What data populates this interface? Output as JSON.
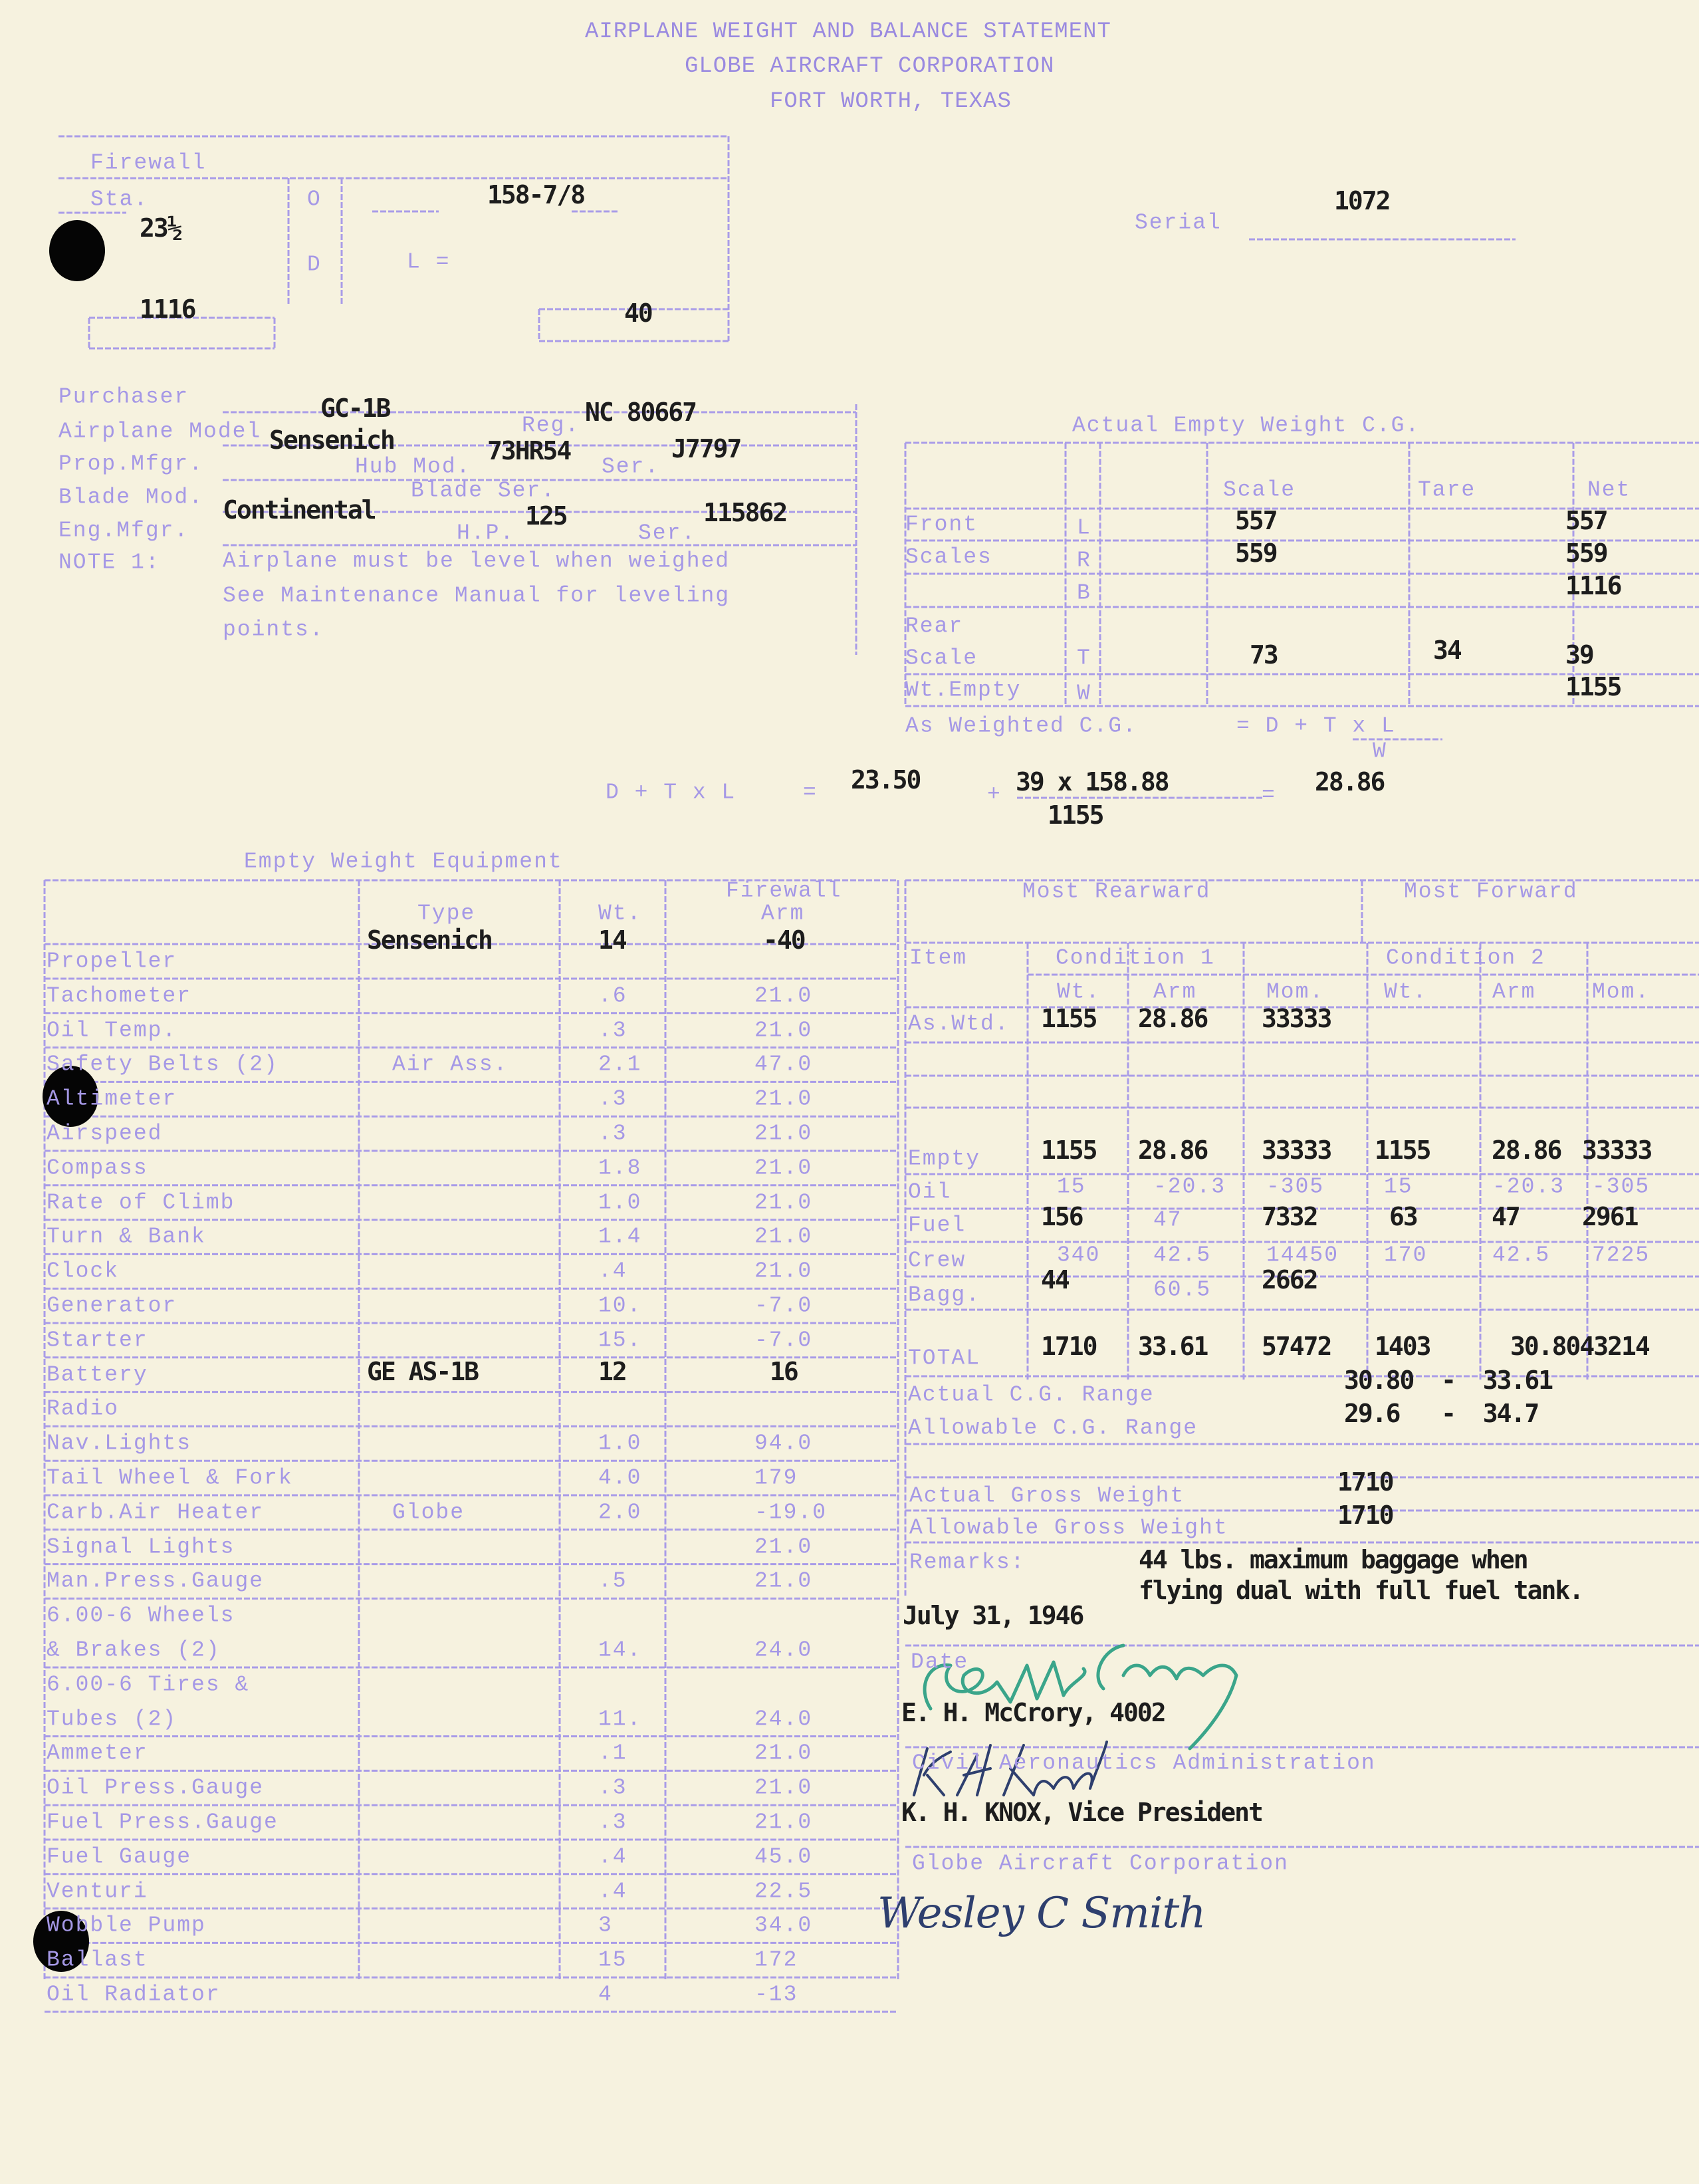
{
  "header": {
    "title": "AIRPLANE WEIGHT AND BALANCE STATEMENT",
    "company": "GLOBE AIRCRAFT CORPORATION",
    "location": "FORT WORTH, TEXAS"
  },
  "firewall_box": {
    "label": "Firewall",
    "sta_label": "Sta.",
    "sta_value": "23½",
    "o_label": "O",
    "d_label": "D",
    "l_label": "L =",
    "length_value": "158-7/8",
    "weight_value": "1116",
    "d_value": "40"
  },
  "serial": {
    "label": "Serial",
    "value": "1072"
  },
  "airplane_info": {
    "labels": [
      "Purchaser",
      "Airplane Model",
      "Prop.Mfgr.",
      "Blade Mod.",
      "Eng.Mfgr.",
      "NOTE 1:"
    ],
    "reg_label": "Reg.",
    "hub_mod_label": "Hub Mod.",
    "prop_ser_label": "Ser.",
    "blade_ser_label": "Blade Ser.",
    "hp_label": "H.P.",
    "eng_ser_label": "Ser.",
    "model": "GC-1B",
    "reg": "NC 80667",
    "prop_mfgr": "Sensenich",
    "hub_mod": "73HR54",
    "prop_ser": "J7797",
    "eng_mfgr": "Continental",
    "hp": "125",
    "eng_ser": "115862",
    "note_lines": [
      "Airplane must be level when weighed",
      "See Maintenance Manual for leveling",
      "points."
    ]
  },
  "empty_cg": {
    "title": "Actual Empty Weight C.G.",
    "headers": {
      "scale": "Scale",
      "tare": "Tare",
      "net": "Net"
    },
    "rows": [
      {
        "label": "Front",
        "code": "L",
        "scale": "557",
        "tare": "",
        "net": "557"
      },
      {
        "label": "Scales",
        "code": "R",
        "scale": "559",
        "tare": "",
        "net": "559"
      },
      {
        "label": "",
        "code": "B",
        "scale": "",
        "tare": "",
        "net": "1116"
      },
      {
        "label": "Rear",
        "code": "",
        "scale": "",
        "tare": "",
        "net": ""
      },
      {
        "label": "Scale",
        "code": "T",
        "scale": "73",
        "tare": "34",
        "net": "39"
      },
      {
        "label": "Wt.Empty",
        "code": "W",
        "scale": "",
        "tare": "",
        "net": "1155"
      }
    ],
    "as_weighted_label": "As Weighted C.G.",
    "formula_text": "= D + T x L",
    "formula_denominator": "W",
    "calc": {
      "lhs": "D + T x L",
      "eq1": "=",
      "d": "23.50",
      "plus": "+",
      "numerator": "39 x 158.88",
      "denominator": "1155",
      "eq2": "=",
      "result": "28.86"
    }
  },
  "equipment": {
    "title": "Empty Weight Equipment",
    "headers": {
      "type": "Type",
      "wt": "Wt.",
      "arm_line1": "Firewall",
      "arm_line2": "Arm"
    },
    "items": [
      {
        "item": "Propeller",
        "type": "Sensenich",
        "wt": "14",
        "arm": "-40",
        "typed": true
      },
      {
        "item": "Tachometer",
        "type": "",
        "wt": ".6",
        "arm": "21.0"
      },
      {
        "item": "Oil Temp.",
        "type": "",
        "wt": ".3",
        "arm": "21.0"
      },
      {
        "item": "Safety Belts (2)",
        "type": "Air Ass.",
        "wt": "2.1",
        "arm": "47.0"
      },
      {
        "item": "Altimeter",
        "type": "",
        "wt": ".3",
        "arm": "21.0"
      },
      {
        "item": "Airspeed",
        "type": "",
        "wt": ".3",
        "arm": "21.0"
      },
      {
        "item": "Compass",
        "type": "",
        "wt": "1.8",
        "arm": "21.0"
      },
      {
        "item": "Rate of Climb",
        "type": "",
        "wt": "1.0",
        "arm": "21.0"
      },
      {
        "item": "Turn & Bank",
        "type": "",
        "wt": "1.4",
        "arm": "21.0"
      },
      {
        "item": "Clock",
        "type": "",
        "wt": ".4",
        "arm": "21.0"
      },
      {
        "item": "Generator",
        "type": "",
        "wt": "10.",
        "arm": "-7.0"
      },
      {
        "item": "Starter",
        "type": "",
        "wt": "15.",
        "arm": "-7.0"
      },
      {
        "item": "Battery",
        "type": "GE AS-1B",
        "wt": "12",
        "arm": "16",
        "typed": true
      },
      {
        "item": "Radio",
        "type": "",
        "wt": "",
        "arm": ""
      },
      {
        "item": "Nav.Lights",
        "type": "",
        "wt": "1.0",
        "arm": "94.0"
      },
      {
        "item": "Tail Wheel & Fork",
        "type": "",
        "wt": "4.0",
        "arm": "179"
      },
      {
        "item": "Carb.Air Heater",
        "type": "Globe",
        "wt": "2.0",
        "arm": "-19.0"
      },
      {
        "item": "Signal Lights",
        "type": "",
        "wt": "",
        "arm": "21.0"
      },
      {
        "item": "Man.Press.Gauge",
        "type": "",
        "wt": ".5",
        "arm": "21.0"
      },
      {
        "item": "6.00-6 Wheels",
        "item_line2": "& Brakes (2)",
        "type": "",
        "wt": "14.",
        "arm": "24.0"
      },
      {
        "item": "6.00-6 Tires &",
        "item_line2": "Tubes (2)",
        "type": "",
        "wt": "11.",
        "arm": "24.0"
      },
      {
        "item": "Ammeter",
        "type": "",
        "wt": ".1",
        "arm": "21.0"
      },
      {
        "item": "Oil Press.Gauge",
        "type": "",
        "wt": ".3",
        "arm": "21.0"
      },
      {
        "item": "Fuel Press.Gauge",
        "type": "",
        "wt": ".3",
        "arm": "21.0"
      },
      {
        "item": "Fuel Gauge",
        "type": "",
        "wt": ".4",
        "arm": "45.0"
      },
      {
        "item": "Venturi",
        "type": "",
        "wt": ".4",
        "arm": "22.5"
      },
      {
        "item": "Wobble Pump",
        "type": "",
        "wt": "3",
        "arm": "34.0"
      },
      {
        "item": "Ballast",
        "type": "",
        "wt": "15",
        "arm": "172"
      },
      {
        "item": "Oil Radiator",
        "type": "",
        "wt": "4",
        "arm": "-13"
      }
    ]
  },
  "loading": {
    "most_rearward": "Most Rearward",
    "most_forward": "Most Forward",
    "item_label": "Item",
    "condition1": "Condition 1",
    "condition2": "Condition 2",
    "col_headers": [
      "Wt.",
      "Arm",
      "Mom.",
      "Wt.",
      "Arm",
      "Mom."
    ],
    "rows": [
      {
        "label": "As.Wtd.",
        "c1": [
          "1155",
          "28.86",
          "33333"
        ],
        "c2": [
          "",
          "",
          ""
        ],
        "typed": [
          true,
          true,
          true,
          false,
          false,
          false
        ]
      },
      {
        "label": "Empty",
        "c1": [
          "1155",
          "28.86",
          "33333"
        ],
        "c2": [
          "1155",
          "28.86",
          "33333"
        ],
        "typed": [
          true,
          true,
          true,
          true,
          true,
          true
        ]
      },
      {
        "label": "Oil",
        "c1": [
          "15",
          "-20.3",
          "-305"
        ],
        "c2": [
          "15",
          "-20.3",
          "-305"
        ],
        "typed": [
          false,
          false,
          false,
          false,
          false,
          false
        ]
      },
      {
        "label": "Fuel",
        "c1": [
          "156",
          "47",
          "7332"
        ],
        "c2": [
          "63",
          "47",
          "2961"
        ],
        "typed": [
          true,
          false,
          true,
          true,
          true,
          true
        ]
      },
      {
        "label": "Crew",
        "c1": [
          "340",
          "42.5",
          "14450"
        ],
        "c2": [
          "170",
          "42.5",
          "7225"
        ],
        "typed": [
          false,
          false,
          false,
          false,
          false,
          false
        ]
      },
      {
        "label": "Bagg.",
        "c1": [
          "44",
          "60.5",
          "2662"
        ],
        "c2": [
          "",
          "",
          ""
        ],
        "typed": [
          true,
          false,
          true,
          false,
          false,
          false
        ]
      },
      {
        "label": "TOTAL",
        "c1": [
          "1710",
          "33.61",
          "57472"
        ],
        "c2": [
          "1403",
          "",
          "30.8043214"
        ],
        "typed": [
          true,
          true,
          true,
          true,
          true,
          true
        ]
      }
    ]
  },
  "summary": {
    "actual_cg_range_label": "Actual C.G. Range",
    "actual_cg_range": "30.80  -  33.61",
    "allowable_cg_range_label": "Allowable C.G. Range",
    "allowable_cg_range": "29.6   -  34.7",
    "actual_gross_weight_label": "Actual Gross Weight",
    "actual_gross_weight": "1710",
    "allowable_gross_weight_label": "Allowable Gross Weight",
    "allowable_gross_weight": "1710",
    "remarks_label": "Remarks:",
    "remarks_lines": [
      "44 lbs. maximum baggage when",
      "flying dual with full fuel tank."
    ],
    "date": "July 31, 1946",
    "date_label": "Date"
  },
  "signatures": {
    "inspector": "E. H. McCrory, 4002",
    "inspector_org": "Civil Aeronautics Administration",
    "officer": "K. H. KNOX, Vice President",
    "officer_org": "Globe Aircraft Corporation",
    "sig1_text": "EH McCrory",
    "sig2_text": "K.H. Knox",
    "sig3_text": "Wesley C Smith",
    "ink_green": "#3aa58a",
    "ink_blue": "#2e3f6e"
  },
  "colors": {
    "form_ink": "#a598e6",
    "typed_ink": "#1d1d1d",
    "paper": "#f6f2df"
  }
}
